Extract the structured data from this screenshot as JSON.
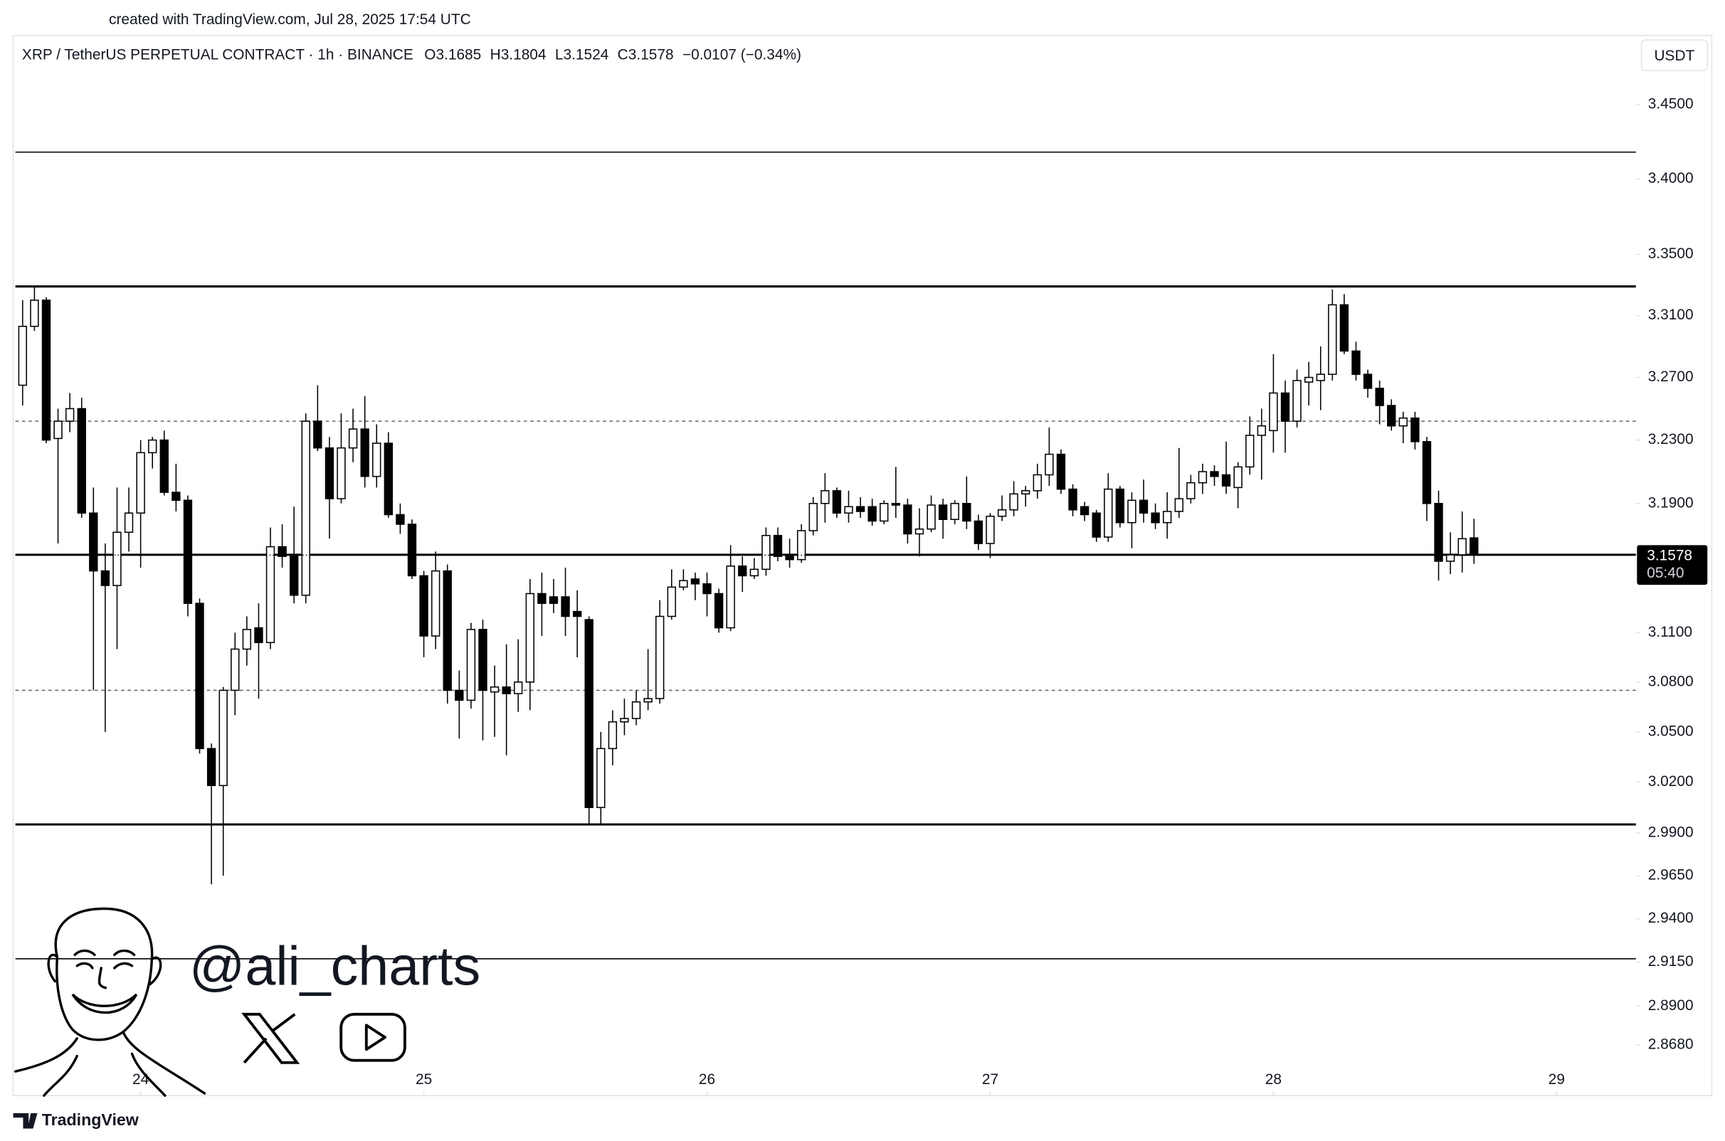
{
  "watermark": "created with TradingView.com, Jul 28, 2025 17:54 UTC",
  "brand": "TradingView",
  "handle": "@ali_charts",
  "chart_data": {
    "type": "candlestick",
    "title": "XRP / TetherUS PERPETUAL CONTRACT · 1h · BINANCE",
    "ohlc_keys": [
      "O",
      "H",
      "L",
      "C"
    ],
    "change": "−0.0107 (−0.34%)",
    "currency": "USDT",
    "countdown": "05:40",
    "log_scale": true,
    "up_color": "#ffffff",
    "down_color": "#000000",
    "x": [
      23.5833,
      23.625,
      23.6667,
      23.7083,
      23.75,
      23.7917,
      23.8333,
      23.875,
      23.9167,
      23.9583,
      24,
      24.0417,
      24.0833,
      24.125,
      24.1667,
      24.2083,
      24.25,
      24.2917,
      24.3333,
      24.375,
      24.4167,
      24.4583,
      24.5,
      24.5417,
      24.5833,
      24.625,
      24.6667,
      24.7083,
      24.75,
      24.7917,
      24.8333,
      24.875,
      24.9167,
      24.9583,
      25,
      25.0417,
      25.0833,
      25.125,
      25.1667,
      25.2083,
      25.25,
      25.2917,
      25.3333,
      25.375,
      25.4167,
      25.4583,
      25.5,
      25.5417,
      25.5833,
      25.625,
      25.6667,
      25.7083,
      25.75,
      25.7917,
      25.8333,
      25.875,
      25.9167,
      25.9583,
      26,
      26.0417,
      26.0833,
      26.125,
      26.1667,
      26.2083,
      26.25,
      26.2917,
      26.3333,
      26.375,
      26.4167,
      26.4583,
      26.5,
      26.5417,
      26.5833,
      26.625,
      26.6667,
      26.7083,
      26.75,
      26.7917,
      26.8333,
      26.875,
      26.9167,
      26.9583,
      27,
      27.0417,
      27.0833,
      27.125,
      27.1667,
      27.2083,
      27.25,
      27.2917,
      27.3333,
      27.375,
      27.4167,
      27.4583,
      27.5,
      27.5417,
      27.5833,
      27.625,
      27.6667,
      27.7083,
      27.75,
      27.7917,
      27.8333,
      27.875,
      27.9167,
      27.9583,
      28,
      28.0417,
      28.0833,
      28.125,
      28.1667,
      28.2083,
      28.25,
      28.2917,
      28.3333,
      28.375,
      28.4167,
      28.4583,
      28.5,
      28.5417,
      28.5833,
      28.625,
      28.6667,
      28.7083
    ],
    "open": [
      3.265,
      3.303,
      3.32,
      3.231,
      3.242,
      3.25,
      3.184,
      3.148,
      3.139,
      3.172,
      3.184,
      3.222,
      3.23,
      3.197,
      3.192,
      3.128,
      3.04,
      3.018,
      3.075,
      3.1,
      3.113,
      3.104,
      3.163,
      3.157,
      3.133,
      3.242,
      3.225,
      3.193,
      3.225,
      3.237,
      3.207,
      3.228,
      3.183,
      3.177,
      3.145,
      3.108,
      3.148,
      3.075,
      3.069,
      3.112,
      3.074,
      3.077,
      3.073,
      3.08,
      3.134,
      3.132,
      3.132,
      3.123,
      3.118,
      3.005,
      3.04,
      3.056,
      3.058,
      3.068,
      3.07,
      3.12,
      3.138,
      3.143,
      3.14,
      3.134,
      3.113,
      3.151,
      3.145,
      3.149,
      3.17,
      3.157,
      3.155,
      3.173,
      3.19,
      3.198,
      3.184,
      3.188,
      3.188,
      3.179,
      3.19,
      3.189,
      3.171,
      3.174,
      3.189,
      3.18,
      3.19,
      3.179,
      3.165,
      3.182,
      3.186,
      3.196,
      3.198,
      3.208,
      3.221,
      3.199,
      3.188,
      3.184,
      3.169,
      3.199,
      3.178,
      3.192,
      3.184,
      3.178,
      3.185,
      3.193,
      3.203,
      3.21,
      3.208,
      3.2,
      3.213,
      3.233,
      3.236,
      3.26,
      3.242,
      3.267,
      3.268,
      3.272,
      3.317,
      3.287,
      3.272,
      3.263,
      3.252,
      3.239,
      3.244,
      3.229,
      3.19,
      3.154,
      3.158,
      3.1685
    ],
    "high": [
      3.32,
      3.329,
      3.322,
      3.25,
      3.26,
      3.257,
      3.2,
      3.165,
      3.2,
      3.2,
      3.23,
      3.232,
      3.236,
      3.215,
      3.195,
      3.131,
      3.043,
      3.077,
      3.11,
      3.12,
      3.128,
      3.175,
      3.177,
      3.188,
      3.247,
      3.265,
      3.232,
      3.247,
      3.25,
      3.258,
      3.24,
      3.235,
      3.19,
      3.18,
      3.148,
      3.16,
      3.152,
      3.087,
      3.116,
      3.118,
      3.09,
      3.103,
      3.106,
      3.143,
      3.147,
      3.143,
      3.15,
      3.136,
      3.12,
      3.05,
      3.063,
      3.07,
      3.075,
      3.1,
      3.13,
      3.149,
      3.149,
      3.147,
      3.147,
      3.137,
      3.164,
      3.157,
      3.156,
      3.175,
      3.175,
      3.168,
      3.177,
      3.194,
      3.209,
      3.2,
      3.198,
      3.194,
      3.193,
      3.192,
      3.213,
      3.193,
      3.187,
      3.195,
      3.193,
      3.192,
      3.207,
      3.183,
      3.184,
      3.195,
      3.204,
      3.201,
      3.215,
      3.238,
      3.224,
      3.202,
      3.191,
      3.186,
      3.209,
      3.201,
      3.197,
      3.205,
      3.19,
      3.197,
      3.225,
      3.208,
      3.215,
      3.214,
      3.229,
      3.216,
      3.245,
      3.25,
      3.285,
      3.268,
      3.275,
      3.28,
      3.29,
      3.327,
      3.324,
      3.293,
      3.275,
      3.268,
      3.256,
      3.248,
      3.248,
      3.232,
      3.198,
      3.172,
      3.185,
      3.1804
    ],
    "low": [
      3.252,
      3.3,
      3.228,
      3.165,
      3.235,
      3.181,
      3.075,
      3.05,
      3.1,
      3.16,
      3.15,
      3.212,
      3.195,
      3.185,
      3.12,
      3.037,
      2.96,
      2.965,
      3.06,
      3.09,
      3.07,
      3.1,
      3.15,
      3.128,
      3.128,
      3.223,
      3.168,
      3.19,
      3.216,
      3.2,
      3.2,
      3.181,
      3.171,
      3.143,
      3.095,
      3.1,
      3.067,
      3.046,
      3.064,
      3.045,
      3.047,
      3.036,
      3.062,
      3.063,
      3.108,
      3.122,
      3.108,
      3.095,
      2.995,
      2.995,
      3.03,
      3.048,
      3.054,
      3.063,
      3.067,
      3.118,
      3.136,
      3.13,
      3.12,
      3.11,
      3.111,
      3.135,
      3.143,
      3.145,
      3.154,
      3.15,
      3.153,
      3.17,
      3.178,
      3.181,
      3.178,
      3.181,
      3.176,
      3.177,
      3.181,
      3.165,
      3.157,
      3.172,
      3.168,
      3.177,
      3.174,
      3.161,
      3.156,
      3.179,
      3.182,
      3.188,
      3.193,
      3.201,
      3.196,
      3.182,
      3.179,
      3.166,
      3.166,
      3.175,
      3.162,
      3.178,
      3.174,
      3.168,
      3.181,
      3.19,
      3.196,
      3.201,
      3.196,
      3.187,
      3.208,
      3.205,
      3.222,
      3.222,
      3.238,
      3.252,
      3.249,
      3.268,
      3.285,
      3.268,
      3.257,
      3.24,
      3.236,
      3.228,
      3.224,
      3.179,
      3.142,
      3.146,
      3.147,
      3.1524
    ],
    "close": [
      3.303,
      3.32,
      3.23,
      3.242,
      3.25,
      3.184,
      3.148,
      3.139,
      3.172,
      3.184,
      3.222,
      3.23,
      3.197,
      3.192,
      3.128,
      3.04,
      3.018,
      3.075,
      3.1,
      3.112,
      3.104,
      3.163,
      3.157,
      3.133,
      3.242,
      3.225,
      3.193,
      3.225,
      3.237,
      3.207,
      3.228,
      3.183,
      3.177,
      3.145,
      3.108,
      3.148,
      3.075,
      3.069,
      3.112,
      3.075,
      3.077,
      3.073,
      3.08,
      3.134,
      3.128,
      3.128,
      3.12,
      3.12,
      3.005,
      3.04,
      3.056,
      3.058,
      3.068,
      3.07,
      3.12,
      3.138,
      3.142,
      3.14,
      3.134,
      3.113,
      3.151,
      3.145,
      3.149,
      3.17,
      3.157,
      3.155,
      3.173,
      3.19,
      3.198,
      3.184,
      3.188,
      3.185,
      3.179,
      3.19,
      3.189,
      3.171,
      3.174,
      3.189,
      3.18,
      3.19,
      3.179,
      3.165,
      3.182,
      3.186,
      3.196,
      3.198,
      3.208,
      3.221,
      3.199,
      3.186,
      3.183,
      3.169,
      3.199,
      3.178,
      3.192,
      3.184,
      3.178,
      3.185,
      3.193,
      3.203,
      3.21,
      3.207,
      3.201,
      3.213,
      3.233,
      3.239,
      3.26,
      3.242,
      3.268,
      3.27,
      3.272,
      3.317,
      3.287,
      3.272,
      3.263,
      3.252,
      3.239,
      3.244,
      3.229,
      3.19,
      3.154,
      3.158,
      3.168,
      3.1578
    ],
    "levels": [
      {
        "value": 3.418,
        "style": "thin"
      },
      {
        "value": 3.329,
        "style": "thick"
      },
      {
        "value": 3.242,
        "style": "dashed"
      },
      {
        "value": 3.158,
        "style": "thick"
      },
      {
        "value": 3.075,
        "style": "dashed"
      },
      {
        "value": 2.995,
        "style": "thick"
      },
      {
        "value": 2.917,
        "style": "thin"
      }
    ],
    "xlim": [
      23.55,
      29.28
    ],
    "xticks": [
      24,
      25,
      26,
      27,
      28,
      29
    ],
    "ylim": [
      2.8396,
      3.4965
    ],
    "yticks": [
      {
        "value": 3.45,
        "label": "3.4500"
      },
      {
        "value": 3.4,
        "label": "3.4000"
      },
      {
        "value": 3.35,
        "label": "3.3500"
      },
      {
        "value": 3.31,
        "label": "3.3100"
      },
      {
        "value": 3.27,
        "label": "3.2700"
      },
      {
        "value": 3.23,
        "label": "3.2300"
      },
      {
        "value": 3.19,
        "label": "3.1900"
      },
      {
        "value": 3.11,
        "label": "3.1100"
      },
      {
        "value": 3.08,
        "label": "3.0800"
      },
      {
        "value": 3.05,
        "label": "3.0500"
      },
      {
        "value": 3.02,
        "label": "3.0200"
      },
      {
        "value": 2.99,
        "label": "2.9900"
      },
      {
        "value": 2.965,
        "label": "2.9650"
      },
      {
        "value": 2.94,
        "label": "2.9400"
      },
      {
        "value": 2.915,
        "label": "2.9150"
      },
      {
        "value": 2.89,
        "label": "2.8900"
      },
      {
        "value": 2.868,
        "label": "2.8680"
      }
    ]
  }
}
